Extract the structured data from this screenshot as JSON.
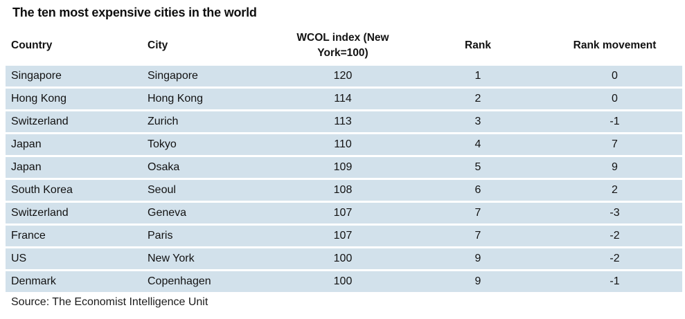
{
  "title": "The ten most expensive cities in the world",
  "source": "Source: The Economist Intelligence Unit",
  "colors": {
    "row_background": "#d2e1eb",
    "text": "#121212",
    "page_background": "#ffffff"
  },
  "chart_data": {
    "type": "table",
    "title": "The ten most expensive cities in the world",
    "columns": [
      {
        "key": "country",
        "label": "Country",
        "align": "left"
      },
      {
        "key": "city",
        "label": "City",
        "align": "left"
      },
      {
        "key": "wcol-index",
        "label": "WCOL index (New York=100)",
        "align": "center"
      },
      {
        "key": "rank",
        "label": "Rank",
        "align": "center"
      },
      {
        "key": "rank-movement",
        "label": "Rank movement",
        "align": "center"
      }
    ],
    "rows": [
      [
        "Singapore",
        "Singapore",
        "120",
        "1",
        "0"
      ],
      [
        "Hong Kong",
        "Hong Kong",
        "114",
        "2",
        "0"
      ],
      [
        "Switzerland",
        "Zurich",
        "113",
        "3",
        "-1"
      ],
      [
        "Japan",
        "Tokyo",
        "110",
        "4",
        "7"
      ],
      [
        "Japan",
        "Osaka",
        "109",
        "5",
        "9"
      ],
      [
        "South Korea",
        "Seoul",
        "108",
        "6",
        "2"
      ],
      [
        "Switzerland",
        "Geneva",
        "107",
        "7",
        "-3"
      ],
      [
        "France",
        "Paris",
        "107",
        "7",
        "-2"
      ],
      [
        "US",
        "New York",
        "100",
        "9",
        "-2"
      ],
      [
        "Denmark",
        "Copenhagen",
        "100",
        "9",
        "-1"
      ]
    ]
  }
}
